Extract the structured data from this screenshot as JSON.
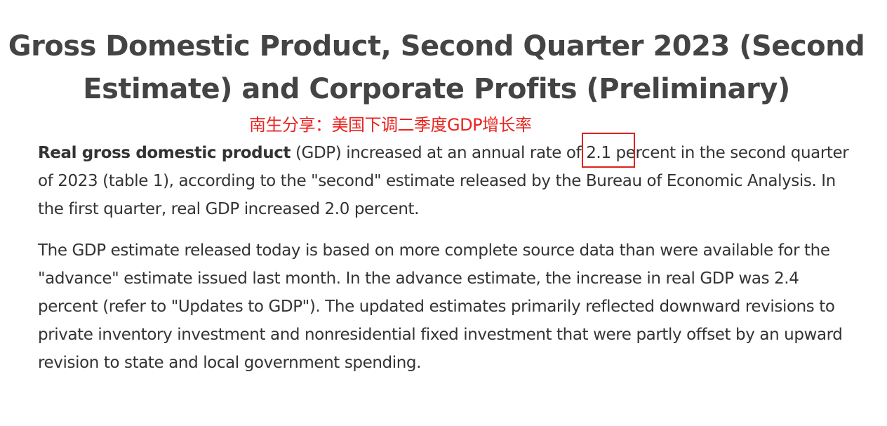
{
  "title": "Gross Domestic Product, Second Quarter 2023 (Second Estimate) and Corporate Profits (Preliminary)",
  "annotation": {
    "caption": "南生分享：美国下调二季度GDP增长率",
    "color": "#e8231f"
  },
  "paragraphs": {
    "p1": {
      "bold_lead": "Real gross domestic product",
      "text_a": " (GDP) increased at an annual rate of ",
      "highlight": "2.1",
      "text_b": " percent in the second quarter of 2023 (table 1), according to the \"second\" estimate released by the Bureau of Economic Analysis. In the first quarter, real GDP increased 2.0 percent."
    },
    "p2": {
      "text": "The GDP estimate released today is based on more complete source data than were available for the \"advance\" estimate issued last month. In the advance estimate, the increase in real GDP was 2.4 percent (refer to \"Updates to GDP\"). The updated estimates primarily reflected downward revisions to private inventory investment and nonresidential fixed investment that were partly offset by an upward revision to state and local government spending."
    }
  }
}
